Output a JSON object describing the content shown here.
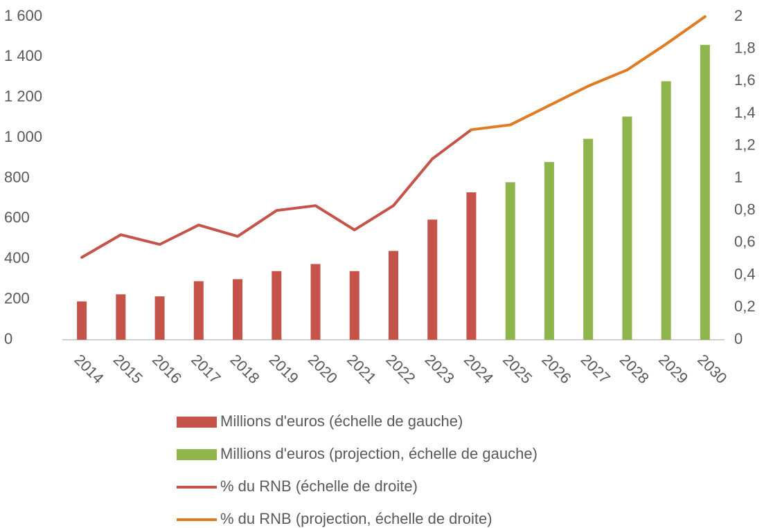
{
  "chart_data": {
    "type": "bar",
    "categories": [
      "2014",
      "2015",
      "2016",
      "2017",
      "2018",
      "2019",
      "2020",
      "2021",
      "2022",
      "2023",
      "2024",
      "2025",
      "2026",
      "2027",
      "2028",
      "2029",
      "2030"
    ],
    "series": [
      {
        "name": "Millions d'euros (échelle de gauche)",
        "type": "bar",
        "color": "#c5534a",
        "values": [
          190,
          225,
          215,
          290,
          300,
          340,
          375,
          340,
          440,
          595,
          730,
          null,
          null,
          null,
          null,
          null,
          null
        ]
      },
      {
        "name": "Millions d'euros (projection, échelle de gauche)",
        "type": "bar",
        "color": "#8db54b",
        "values": [
          null,
          null,
          null,
          null,
          null,
          null,
          null,
          null,
          null,
          null,
          null,
          780,
          880,
          995,
          1105,
          1280,
          1460
        ]
      },
      {
        "name": "% du RNB (échelle de droite)",
        "type": "line",
        "axis": "y2",
        "color": "#c5534a",
        "values": [
          0.51,
          0.65,
          0.59,
          0.71,
          0.64,
          0.8,
          0.83,
          0.68,
          0.83,
          1.12,
          1.3,
          null,
          null,
          null,
          null,
          null,
          null
        ]
      },
      {
        "name": "% du RNB (projection, échelle de droite)",
        "type": "line",
        "axis": "y2",
        "color": "#e07b24",
        "values": [
          null,
          null,
          null,
          null,
          null,
          null,
          null,
          null,
          null,
          null,
          1.3,
          1.33,
          1.45,
          1.57,
          1.67,
          1.83,
          2
        ]
      }
    ],
    "ylim": [
      0,
      1600
    ],
    "yticks": [
      0,
      200,
      400,
      600,
      800,
      {
        "value": 1000,
        "label": "1 000"
      },
      {
        "value": 1200,
        "label": "1 200"
      },
      {
        "value": 1400,
        "label": "1 400"
      },
      {
        "value": 1600,
        "label": "1 600"
      }
    ],
    "y2lim": [
      0,
      2
    ],
    "y2ticks": [
      0,
      {
        "value": 0.2,
        "label": "0,2"
      },
      {
        "value": 0.4,
        "label": "0,4"
      },
      {
        "value": 0.6,
        "label": "0,6"
      },
      {
        "value": 0.8,
        "label": "0,8"
      },
      1,
      {
        "value": 1.2,
        "label": "1,2"
      },
      {
        "value": 1.4,
        "label": "1,4"
      },
      {
        "value": 1.6,
        "label": "1,6"
      },
      {
        "value": 1.8,
        "label": "1,8"
      },
      2
    ]
  }
}
